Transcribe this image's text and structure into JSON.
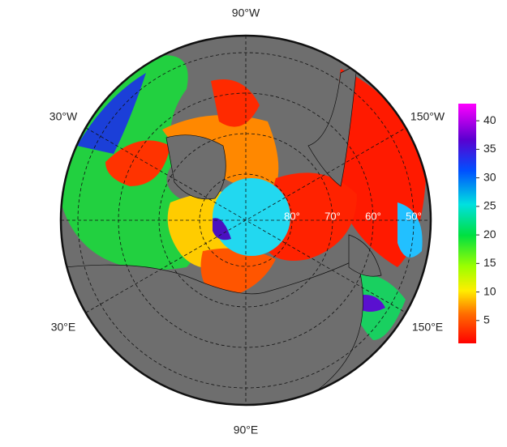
{
  "map": {
    "longitude_labels": [
      "90°W",
      "30°W",
      "150°W",
      "30°E",
      "150°E",
      "90°E"
    ],
    "latitude_labels": [
      "80°",
      "70°",
      "60°",
      "50°"
    ]
  },
  "colorbar": {
    "lim": [
      1,
      43
    ],
    "ticks": [
      5,
      10,
      15,
      20,
      25,
      30,
      35,
      40
    ]
  }
}
